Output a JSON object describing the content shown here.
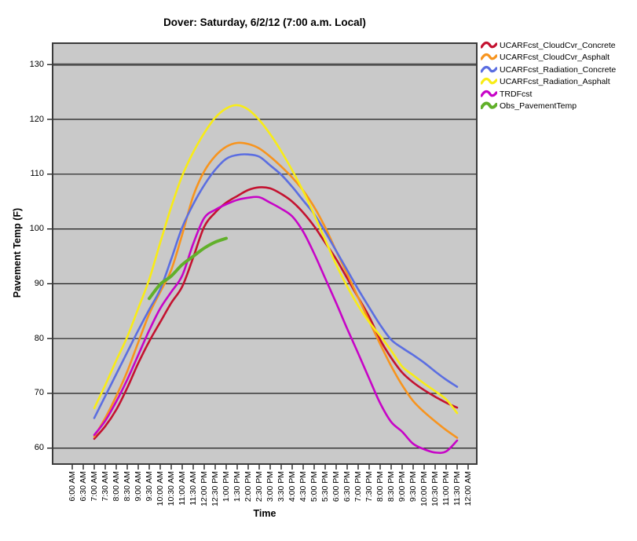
{
  "chart_data": {
    "type": "line",
    "title": "Dover: Saturday, 6/2/12 (7:00 a.m. Local)",
    "xlabel": "Time",
    "ylabel": "Pavement Temp (F)",
    "x_tick_labels": [
      "6:00 AM",
      "6:30 AM",
      "7:00 AM",
      "7:30 AM",
      "8:00 AM",
      "8:30 AM",
      "9:00 AM",
      "9:30 AM",
      "10:00 AM",
      "10:30 AM",
      "11:00 AM",
      "11:30 AM",
      "12:00 PM",
      "12:30 PM",
      "1:00 PM",
      "1:30 PM",
      "2:00 PM",
      "2:30 PM",
      "3:00 PM",
      "3:30 PM",
      "4:00 PM",
      "4:30 PM",
      "5:00 PM",
      "5:30 PM",
      "6:00 PM",
      "6:30 PM",
      "7:00 PM",
      "7:30 PM",
      "8:00 PM",
      "8:30 PM",
      "9:00 PM",
      "9:30 PM",
      "10:00 PM",
      "10:30 PM",
      "11:00 PM",
      "11:30 PM",
      "12:00 AM"
    ],
    "y_ticks": [
      60,
      70,
      80,
      90,
      100,
      110,
      120,
      130
    ],
    "y_axis_range": [
      57.1,
      133.9
    ],
    "grid": "horizontal gridlines at each 10 F on gray plot background",
    "legend_position": "top-right outside plot",
    "plot_background": "#c9c9c9",
    "gridline_color": "#1c1c1c",
    "point_format": "[x_tick_index, temp_F]",
    "series": [
      {
        "name": "UCARFcst_CloudCvr_Concrete",
        "color": "#c41230",
        "width": 2.6,
        "points": [
          [
            2,
            61.7
          ],
          [
            3,
            64.0
          ],
          [
            4,
            67.0
          ],
          [
            5,
            71.0
          ],
          [
            6,
            75.5
          ],
          [
            7,
            79.5
          ],
          [
            8,
            83.0
          ],
          [
            9,
            86.5
          ],
          [
            10,
            89.5
          ],
          [
            11,
            94.8
          ],
          [
            12,
            100.4
          ],
          [
            13,
            103.0
          ],
          [
            14,
            104.8
          ],
          [
            15,
            106.0
          ],
          [
            16,
            107.1
          ],
          [
            17,
            107.6
          ],
          [
            18,
            107.4
          ],
          [
            19,
            106.4
          ],
          [
            20,
            105.0
          ],
          [
            21,
            103.0
          ],
          [
            22,
            100.5
          ],
          [
            23,
            97.5
          ],
          [
            24,
            94.5
          ],
          [
            25,
            91.0
          ],
          [
            26,
            87.5
          ],
          [
            27,
            84.0
          ],
          [
            28,
            79.8
          ],
          [
            29,
            76.5
          ],
          [
            30,
            73.8
          ],
          [
            31,
            72.0
          ],
          [
            32,
            70.6
          ],
          [
            33,
            69.4
          ],
          [
            34,
            68.3
          ],
          [
            35,
            67.4
          ]
        ]
      },
      {
        "name": "UCARFcst_CloudCvr_Asphalt",
        "color": "#f7941e",
        "width": 2.6,
        "points": [
          [
            2,
            62.1
          ],
          [
            3,
            65.5
          ],
          [
            4,
            69.5
          ],
          [
            5,
            74.0
          ],
          [
            6,
            79.3
          ],
          [
            7,
            84.5
          ],
          [
            8,
            88.5
          ],
          [
            9,
            92.5
          ],
          [
            10,
            99.0
          ],
          [
            11,
            106.0
          ],
          [
            12,
            110.5
          ],
          [
            13,
            113.3
          ],
          [
            14,
            115.0
          ],
          [
            15,
            115.7
          ],
          [
            16,
            115.5
          ],
          [
            17,
            114.7
          ],
          [
            18,
            113.2
          ],
          [
            19,
            111.4
          ],
          [
            20,
            109.4
          ],
          [
            21,
            107.0
          ],
          [
            22,
            104.0
          ],
          [
            23,
            100.3
          ],
          [
            24,
            96.0
          ],
          [
            25,
            91.8
          ],
          [
            26,
            87.5
          ],
          [
            27,
            83.2
          ],
          [
            28,
            79.0
          ],
          [
            29,
            75.0
          ],
          [
            30,
            71.5
          ],
          [
            31,
            68.6
          ],
          [
            32,
            66.6
          ],
          [
            33,
            64.9
          ],
          [
            34,
            63.3
          ],
          [
            35,
            61.9
          ]
        ]
      },
      {
        "name": "UCARFcst_Radiation_Concrete",
        "color": "#5b6ee1",
        "width": 2.6,
        "points": [
          [
            2,
            65.5
          ],
          [
            3,
            69.5
          ],
          [
            4,
            73.5
          ],
          [
            5,
            77.5
          ],
          [
            6,
            81.5
          ],
          [
            7,
            85.3
          ],
          [
            8,
            89.0
          ],
          [
            9,
            94.5
          ],
          [
            10,
            100.3
          ],
          [
            11,
            104.5
          ],
          [
            12,
            108.0
          ],
          [
            13,
            110.8
          ],
          [
            14,
            112.8
          ],
          [
            15,
            113.5
          ],
          [
            16,
            113.6
          ],
          [
            17,
            113.2
          ],
          [
            18,
            111.6
          ],
          [
            19,
            109.9
          ],
          [
            20,
            107.7
          ],
          [
            21,
            105.2
          ],
          [
            22,
            102.7
          ],
          [
            23,
            99.5
          ],
          [
            24,
            96.0
          ],
          [
            25,
            92.5
          ],
          [
            26,
            89.0
          ],
          [
            27,
            85.7
          ],
          [
            28,
            82.5
          ],
          [
            29,
            79.8
          ],
          [
            30,
            78.3
          ],
          [
            31,
            77.0
          ],
          [
            32,
            75.6
          ],
          [
            33,
            74.0
          ],
          [
            34,
            72.5
          ],
          [
            35,
            71.2
          ]
        ]
      },
      {
        "name": "UCARFcst_Radiation_Asphalt",
        "color": "#f8ec16",
        "width": 2.6,
        "points": [
          [
            2,
            67.3
          ],
          [
            3,
            71.5
          ],
          [
            4,
            76.0
          ],
          [
            5,
            80.3
          ],
          [
            6,
            85.5
          ],
          [
            7,
            90.8
          ],
          [
            8,
            97.5
          ],
          [
            9,
            104.0
          ],
          [
            10,
            109.7
          ],
          [
            11,
            114.0
          ],
          [
            12,
            117.5
          ],
          [
            13,
            120.3
          ],
          [
            14,
            122.0
          ],
          [
            15,
            122.6
          ],
          [
            16,
            121.8
          ],
          [
            17,
            119.9
          ],
          [
            18,
            117.3
          ],
          [
            19,
            114.2
          ],
          [
            20,
            110.7
          ],
          [
            21,
            106.9
          ],
          [
            22,
            102.6
          ],
          [
            23,
            98.0
          ],
          [
            24,
            93.5
          ],
          [
            25,
            89.5
          ],
          [
            26,
            86.0
          ],
          [
            27,
            83.0
          ],
          [
            28,
            80.5
          ],
          [
            29,
            77.8
          ],
          [
            30,
            74.9
          ],
          [
            31,
            73.3
          ],
          [
            32,
            71.8
          ],
          [
            33,
            70.4
          ],
          [
            34,
            68.9
          ],
          [
            35,
            66.4
          ]
        ]
      },
      {
        "name": "TRDFcst",
        "color": "#c704c7",
        "width": 2.6,
        "points": [
          [
            2,
            62.4
          ],
          [
            3,
            65.0
          ],
          [
            4,
            68.5
          ],
          [
            5,
            72.5
          ],
          [
            6,
            77.0
          ],
          [
            7,
            81.5
          ],
          [
            8,
            85.5
          ],
          [
            9,
            88.5
          ],
          [
            10,
            91.5
          ],
          [
            11,
            97.3
          ],
          [
            12,
            102.0
          ],
          [
            13,
            103.5
          ],
          [
            14,
            104.5
          ],
          [
            15,
            105.3
          ],
          [
            16,
            105.7
          ],
          [
            17,
            105.8
          ],
          [
            18,
            104.8
          ],
          [
            19,
            103.7
          ],
          [
            20,
            102.3
          ],
          [
            21,
            99.5
          ],
          [
            22,
            95.5
          ],
          [
            23,
            91.0
          ],
          [
            24,
            86.5
          ],
          [
            25,
            81.8
          ],
          [
            26,
            77.3
          ],
          [
            27,
            72.7
          ],
          [
            28,
            68.2
          ],
          [
            29,
            64.8
          ],
          [
            30,
            63.0
          ],
          [
            31,
            60.8
          ],
          [
            32,
            59.8
          ],
          [
            33,
            59.2
          ],
          [
            34,
            59.4
          ],
          [
            35,
            61.4
          ]
        ]
      },
      {
        "name": "Obs_PavementTemp",
        "color": "#61b02a",
        "width": 4,
        "points": [
          [
            7,
            87.3
          ],
          [
            8,
            89.9
          ],
          [
            9,
            91.4
          ],
          [
            10,
            93.5
          ],
          [
            11,
            95.0
          ],
          [
            12,
            96.5
          ],
          [
            13,
            97.6
          ],
          [
            14,
            98.3
          ]
        ]
      }
    ]
  }
}
